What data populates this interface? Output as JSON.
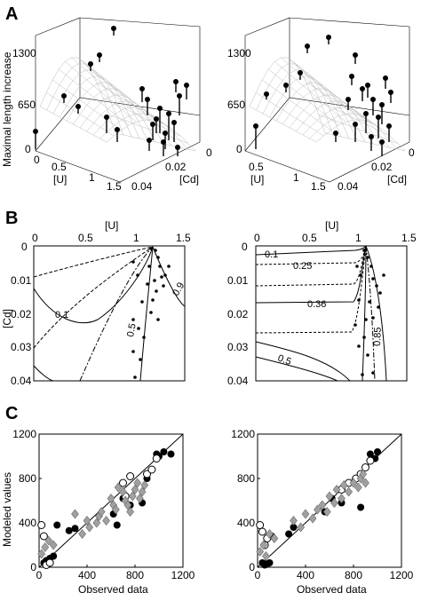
{
  "figure": {
    "panel_labels": [
      "A",
      "B",
      "C"
    ],
    "panelA": {
      "zlabel": "Maximal length increase",
      "z_ticks": [
        "1300",
        "650",
        "0"
      ],
      "u_label": "[U]",
      "u_ticks": [
        "0",
        "0.5",
        "1",
        "1.5"
      ],
      "cd_label": "[Cd]",
      "cd_ticks": [
        "0",
        "0.02",
        "0.04"
      ],
      "left_z_ticks": [
        "1300",
        "650",
        "0"
      ],
      "right_z_ticks": [
        "1300",
        "650",
        "0"
      ]
    },
    "panelB": {
      "u_label": "[U]",
      "u_ticks": [
        "0",
        "0.5",
        "1",
        "1.5"
      ],
      "cd_label": "[Cd]",
      "cd_ticks": [
        "0",
        "0.01",
        "0.02",
        "0.03",
        "0.04"
      ],
      "left_contours": [
        "0.1",
        "0.5",
        "0.9"
      ],
      "right_contours": [
        "0.1",
        "0.25",
        "0.36",
        "0.5",
        "0.85"
      ]
    },
    "panelC": {
      "ylabel": "Modeled values",
      "xlabel": "Observed data",
      "x_ticks": [
        "0",
        "400",
        "800",
        "1200"
      ],
      "y_ticks": [
        "1200",
        "800",
        "400",
        "0"
      ]
    }
  },
  "chart_data": [
    {
      "type": "scatter",
      "title": "",
      "xlabel": "Observed data",
      "ylabel": "Modeled values",
      "xlim": [
        0,
        1200
      ],
      "ylim": [
        0,
        1200
      ],
      "series": [
        {
          "marker": "filled-circle",
          "color": "#000000",
          "x": [
            40,
            60,
            90,
            120,
            150,
            250,
            300,
            620,
            650,
            700,
            760,
            860,
            900,
            980,
            1000,
            1040,
            1100
          ],
          "y": [
            40,
            60,
            80,
            100,
            380,
            330,
            350,
            480,
            380,
            620,
            560,
            580,
            800,
            1020,
            1000,
            1040,
            1020
          ]
        },
        {
          "marker": "open-circle",
          "color": "#000000",
          "x": [
            20,
            40,
            60,
            90,
            700,
            720,
            760,
            900,
            940,
            980
          ],
          "y": [
            380,
            280,
            20,
            40,
            760,
            640,
            820,
            840,
            880,
            980
          ]
        },
        {
          "marker": "diamond",
          "color": "#999999",
          "x": [
            20,
            50,
            80,
            120,
            300,
            360,
            400,
            420,
            480,
            500,
            520,
            560,
            600,
            620,
            640,
            660,
            700,
            720,
            740,
            760,
            780,
            800,
            820,
            840,
            860,
            880
          ],
          "y": [
            120,
            180,
            240,
            200,
            480,
            300,
            420,
            360,
            400,
            460,
            500,
            420,
            620,
            560,
            520,
            720,
            680,
            600,
            560,
            500,
            640,
            700,
            760,
            620,
            680,
            740
          ]
        }
      ]
    },
    {
      "type": "scatter",
      "title": "",
      "xlabel": "Observed data",
      "ylabel": "",
      "xlim": [
        0,
        1200
      ],
      "ylim": [
        0,
        1200
      ],
      "series": [
        {
          "marker": "filled-circle",
          "color": "#000000",
          "x": [
            40,
            60,
            80,
            100,
            120,
            260,
            300,
            560,
            620,
            700,
            860,
            940,
            980,
            1000
          ],
          "y": [
            40,
            20,
            30,
            40,
            280,
            300,
            360,
            500,
            620,
            580,
            540,
            1020,
            980,
            1040
          ]
        },
        {
          "marker": "open-circle",
          "color": "#000000",
          "x": [
            20,
            40,
            60,
            80,
            700,
            760,
            820,
            860,
            900,
            940
          ],
          "y": [
            380,
            320,
            200,
            260,
            700,
            760,
            800,
            840,
            900,
            960
          ]
        },
        {
          "marker": "diamond",
          "color": "#999999",
          "x": [
            20,
            50,
            70,
            100,
            140,
            300,
            360,
            400,
            460,
            500,
            540,
            580,
            600,
            640,
            660,
            700,
            720,
            760,
            800,
            840,
            860,
            880,
            900
          ],
          "y": [
            140,
            200,
            100,
            300,
            260,
            420,
            360,
            480,
            440,
            520,
            560,
            500,
            640,
            580,
            700,
            620,
            740,
            680,
            760,
            720,
            800,
            840,
            760
          ]
        }
      ]
    }
  ]
}
